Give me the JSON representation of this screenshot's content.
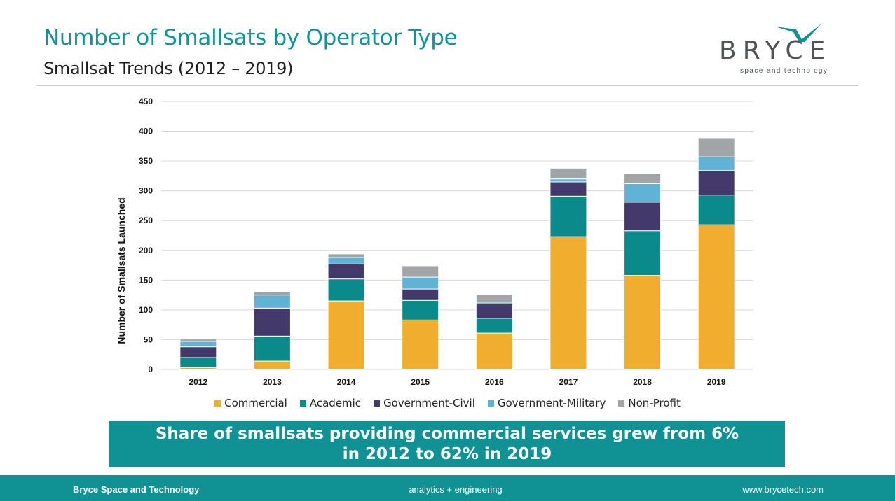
{
  "header": {
    "title": "Number of Smallsats by Operator Type",
    "subtitle": "Smallsat Trends (2012 – 2019)"
  },
  "logo": {
    "word": "BRYCE",
    "tagline": "space and technology"
  },
  "colors": {
    "accent": "#109193",
    "commercial": "#F0AD2E",
    "academic": "#0B8A8C",
    "government_civil": "#433A6B",
    "government_military": "#61B3D6",
    "non_profit": "#A1A5A8"
  },
  "chart_data": {
    "type": "bar",
    "stacked": true,
    "categories": [
      "2012",
      "2013",
      "2014",
      "2015",
      "2016",
      "2017",
      "2018",
      "2019"
    ],
    "series": [
      {
        "name": "Commercial",
        "color": "#F0AD2E",
        "values": [
          3,
          14,
          115,
          83,
          61,
          223,
          158,
          243
        ]
      },
      {
        "name": "Academic",
        "color": "#0B8A8C",
        "values": [
          17,
          42,
          37,
          33,
          25,
          68,
          75,
          50
        ]
      },
      {
        "name": "Government-Civil",
        "color": "#433A6B",
        "values": [
          18,
          47,
          25,
          19,
          24,
          24,
          48,
          41
        ]
      },
      {
        "name": "Government-Military",
        "color": "#61B3D6",
        "values": [
          9,
          22,
          11,
          20,
          3,
          5,
          31,
          23
        ]
      },
      {
        "name": "Non-Profit",
        "color": "#A1A5A8",
        "values": [
          4,
          5,
          6,
          19,
          13,
          18,
          17,
          32
        ]
      }
    ],
    "ylabel": "Number of Smallsats Launched",
    "xlabel": "",
    "ylim": [
      0,
      450
    ],
    "yticks": [
      0,
      50,
      100,
      150,
      200,
      250,
      300,
      350,
      400,
      450
    ],
    "grid": true,
    "legend_position": "bottom"
  },
  "callout": {
    "text": "Share of smallsats providing commercial services grew from 6% in 2012 to 62% in 2019"
  },
  "footer": {
    "left": "Bryce Space and Technology",
    "center": "analytics + engineering",
    "right": "www.brycetech.com"
  }
}
